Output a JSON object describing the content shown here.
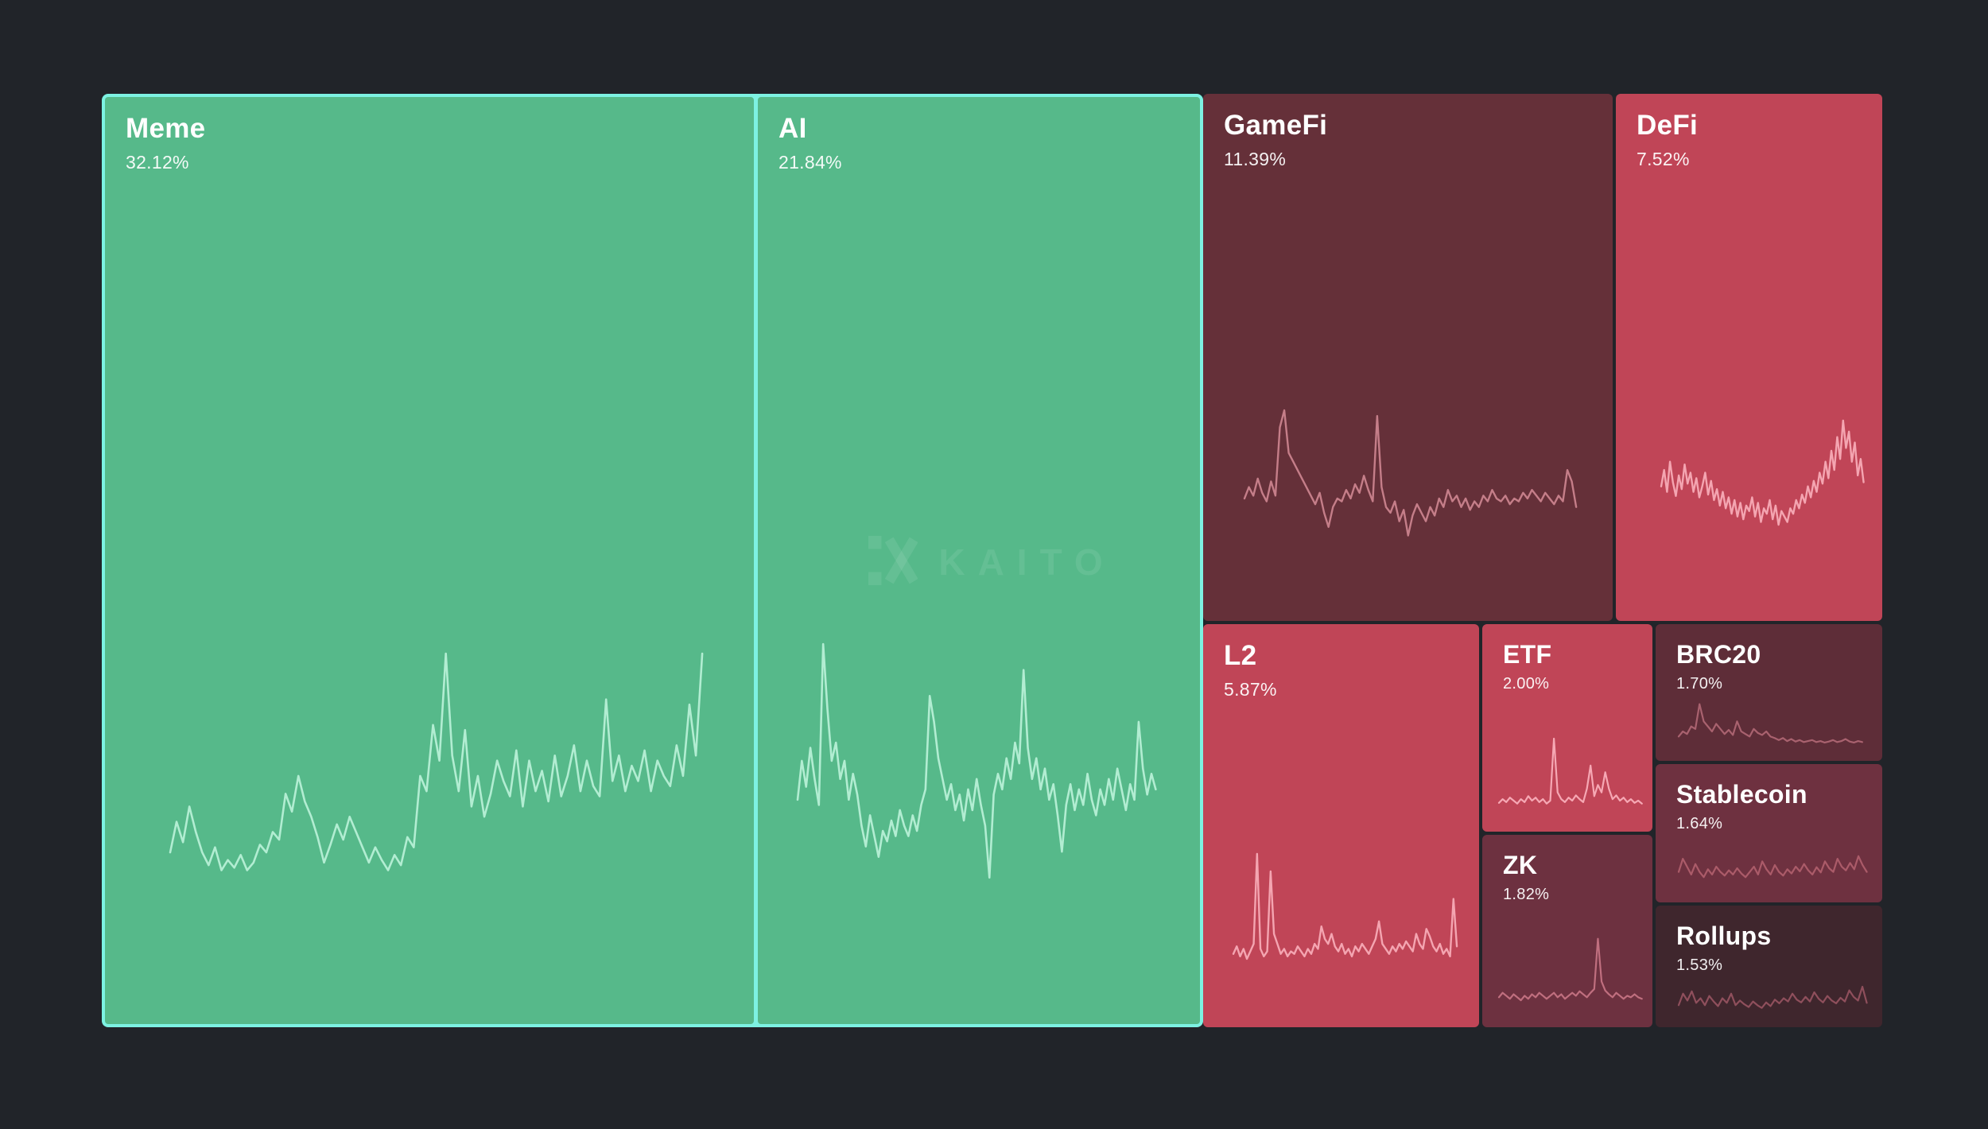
{
  "app": {
    "watermark": "KAITO"
  },
  "chart_data": {
    "type": "treemap",
    "unit": "%",
    "background": "#212429",
    "highlight_color": "#7df2e2",
    "tiles": [
      {
        "name": "Meme",
        "value": 32.12,
        "value_label": "32.12%",
        "trend": "up",
        "color": "#56b98a",
        "spark_color": "#b2edd2",
        "sparkline": [
          22,
          34,
          26,
          40,
          30,
          22,
          17,
          24,
          15,
          19,
          16,
          21,
          15,
          18,
          25,
          22,
          30,
          27,
          45,
          38,
          52,
          42,
          36,
          28,
          18,
          25,
          33,
          27,
          36,
          30,
          24,
          18,
          24,
          19,
          15,
          21,
          17,
          28,
          24,
          52,
          46,
          72,
          58,
          100,
          60,
          46,
          70,
          40,
          52,
          36,
          45,
          58,
          50,
          44,
          62,
          40,
          58,
          46,
          54,
          42,
          60,
          44,
          52,
          64,
          46,
          58,
          48,
          44,
          82,
          50,
          60,
          46,
          56,
          50,
          62,
          46,
          58,
          52,
          48,
          64,
          52,
          80,
          60,
          100
        ]
      },
      {
        "name": "AI",
        "value": 21.84,
        "value_label": "21.84%",
        "trend": "up",
        "color": "#56b98a",
        "spark_color": "#b2edd2",
        "sparkline": [
          40,
          55,
          45,
          60,
          48,
          38,
          100,
          75,
          55,
          62,
          48,
          55,
          40,
          50,
          42,
          30,
          22,
          34,
          26,
          18,
          28,
          24,
          32,
          26,
          36,
          30,
          26,
          34,
          28,
          38,
          44,
          80,
          70,
          56,
          48,
          40,
          46,
          36,
          42,
          32,
          44,
          36,
          48,
          38,
          30,
          10,
          42,
          50,
          44,
          56,
          48,
          62,
          54,
          90,
          60,
          48,
          56,
          44,
          52,
          40,
          46,
          34,
          20,
          38,
          46,
          36,
          44,
          38,
          50,
          40,
          34,
          44,
          38,
          48,
          40,
          52,
          44,
          36,
          46,
          40,
          70,
          52,
          42,
          50,
          44
        ]
      },
      {
        "name": "GameFi",
        "value": 11.39,
        "value_label": "11.39%",
        "trend": "down",
        "color": "#653039",
        "spark_color": "#c57e89",
        "sparkline": [
          38,
          46,
          40,
          52,
          42,
          36,
          50,
          40,
          88,
          100,
          70,
          64,
          58,
          52,
          46,
          40,
          34,
          42,
          28,
          18,
          32,
          38,
          36,
          44,
          38,
          48,
          42,
          54,
          44,
          36,
          96,
          46,
          32,
          28,
          36,
          22,
          30,
          12,
          26,
          34,
          28,
          22,
          32,
          26,
          38,
          32,
          44,
          36,
          40,
          32,
          38,
          30,
          36,
          32,
          40,
          36,
          44,
          38,
          36,
          40,
          34,
          38,
          36,
          42,
          38,
          44,
          40,
          36,
          42,
          38,
          34,
          40,
          36,
          58,
          50,
          32
        ]
      },
      {
        "name": "DeFi",
        "value": 7.52,
        "value_label": "7.52%",
        "trend": "down",
        "color": "#c04557",
        "spark_color": "#f4a5b1",
        "sparkline": [
          52,
          64,
          48,
          70,
          55,
          45,
          60,
          50,
          68,
          54,
          62,
          48,
          58,
          44,
          52,
          62,
          46,
          56,
          42,
          50,
          38,
          48,
          36,
          44,
          32,
          42,
          30,
          40,
          28,
          38,
          34,
          44,
          30,
          40,
          26,
          36,
          32,
          42,
          28,
          38,
          24,
          34,
          30,
          26,
          36,
          32,
          42,
          36,
          46,
          40,
          52,
          44,
          56,
          48,
          62,
          54,
          70,
          58,
          78,
          64,
          88,
          72,
          100,
          80,
          92,
          70,
          84,
          60,
          72,
          55
        ]
      },
      {
        "name": "L2",
        "value": 5.87,
        "value_label": "5.87%",
        "trend": "down",
        "color": "#c04557",
        "spark_color": "#f4a5b1",
        "sparkline": [
          20,
          26,
          18,
          24,
          16,
          22,
          28,
          100,
          24,
          18,
          22,
          86,
          36,
          28,
          20,
          24,
          18,
          22,
          20,
          26,
          22,
          18,
          24,
          20,
          28,
          24,
          42,
          32,
          28,
          36,
          26,
          22,
          28,
          20,
          24,
          18,
          26,
          22,
          28,
          24,
          20,
          26,
          32,
          46,
          28,
          24,
          20,
          26,
          22,
          28,
          24,
          30,
          26,
          22,
          36,
          28,
          24,
          40,
          34,
          26,
          22,
          28,
          20,
          24,
          18,
          64,
          26
        ]
      },
      {
        "name": "ETF",
        "value": 2.0,
        "value_label": "2.00%",
        "trend": "down",
        "color": "#c04557",
        "spark_color": "#f6a8b4",
        "sparkline": [
          14,
          19,
          15,
          21,
          17,
          13,
          19,
          15,
          23,
          17,
          21,
          15,
          19,
          13,
          17,
          100,
          28,
          19,
          15,
          21,
          17,
          24,
          19,
          15,
          33,
          64,
          23,
          38,
          28,
          55,
          33,
          19,
          24,
          17,
          21,
          15,
          19,
          14,
          17,
          13
        ]
      },
      {
        "name": "ZK",
        "value": 1.82,
        "value_label": "1.82%",
        "trend": "down",
        "color": "#6d3140",
        "spark_color": "#c06f7f",
        "sparkline": [
          17,
          23,
          19,
          15,
          21,
          17,
          13,
          19,
          15,
          21,
          17,
          23,
          19,
          15,
          19,
          23,
          17,
          21,
          15,
          19,
          23,
          19,
          25,
          21,
          17,
          23,
          28,
          95,
          38,
          26,
          21,
          17,
          23,
          19,
          15,
          19,
          17,
          21,
          17,
          15
        ]
      },
      {
        "name": "BRC20",
        "value": 1.7,
        "value_label": "1.70%",
        "trend": "down",
        "color": "#5e2d38",
        "spark_color": "#a9626f",
        "sparkline": [
          24,
          34,
          29,
          44,
          39,
          88,
          54,
          44,
          34,
          49,
          39,
          29,
          37,
          27,
          54,
          34,
          29,
          24,
          39,
          31,
          27,
          34,
          24,
          21,
          17,
          21,
          15,
          19,
          14,
          17,
          13,
          15,
          17,
          13,
          15,
          12,
          14,
          17,
          13,
          15,
          19,
          14,
          12,
          15,
          13
        ]
      },
      {
        "name": "Stablecoin",
        "value": 1.64,
        "value_label": "1.64%",
        "trend": "down",
        "color": "#6e3140",
        "spark_color": "#ab5b69",
        "sparkline": [
          34,
          59,
          44,
          29,
          49,
          34,
          24,
          39,
          29,
          44,
          34,
          27,
          37,
          29,
          41,
          31,
          24,
          34,
          44,
          29,
          54,
          39,
          29,
          47,
          34,
          27,
          39,
          31,
          44,
          35,
          49,
          37,
          29,
          43,
          33,
          54,
          41,
          34,
          59,
          44,
          37,
          51,
          39,
          64,
          47,
          34
        ]
      },
      {
        "name": "Rollups",
        "value": 1.53,
        "value_label": "1.53%",
        "trend": "down",
        "color": "#3f262d",
        "spark_color": "#8f4f5c",
        "sparkline": [
          29,
          54,
          39,
          59,
          34,
          44,
          29,
          49,
          37,
          27,
          44,
          34,
          54,
          29,
          39,
          31,
          25,
          37,
          29,
          23,
          35,
          27,
          41,
          33,
          44,
          37,
          54,
          41,
          35,
          47,
          37,
          57,
          43,
          35,
          49,
          39,
          33,
          45,
          37,
          61,
          47,
          39,
          69,
          34
        ]
      }
    ]
  }
}
